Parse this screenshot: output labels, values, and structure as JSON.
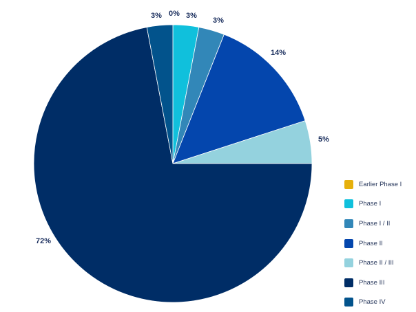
{
  "chart_data": {
    "type": "pie",
    "title": "",
    "start": "12 o'clock, clockwise",
    "legend_position": "right",
    "slices": [
      {
        "label": "Earlier Phase I",
        "value": 0,
        "display": "0%",
        "color": "#e6b00c"
      },
      {
        "label": "Phase I",
        "value": 3,
        "display": "3%",
        "color": "#10c0dc"
      },
      {
        "label": "Phase I / II",
        "value": 3,
        "display": "3%",
        "color": "#3287b8"
      },
      {
        "label": "Phase II",
        "value": 14,
        "display": "14%",
        "color": "#0446ad"
      },
      {
        "label": "Phase II / III",
        "value": 5,
        "display": "5%",
        "color": "#94d2de"
      },
      {
        "label": "Phase III",
        "value": 72,
        "display": "72%",
        "color": "#002d66"
      },
      {
        "label": "Phase IV",
        "value": 3,
        "display": "3%",
        "color": "#02538c"
      }
    ]
  }
}
